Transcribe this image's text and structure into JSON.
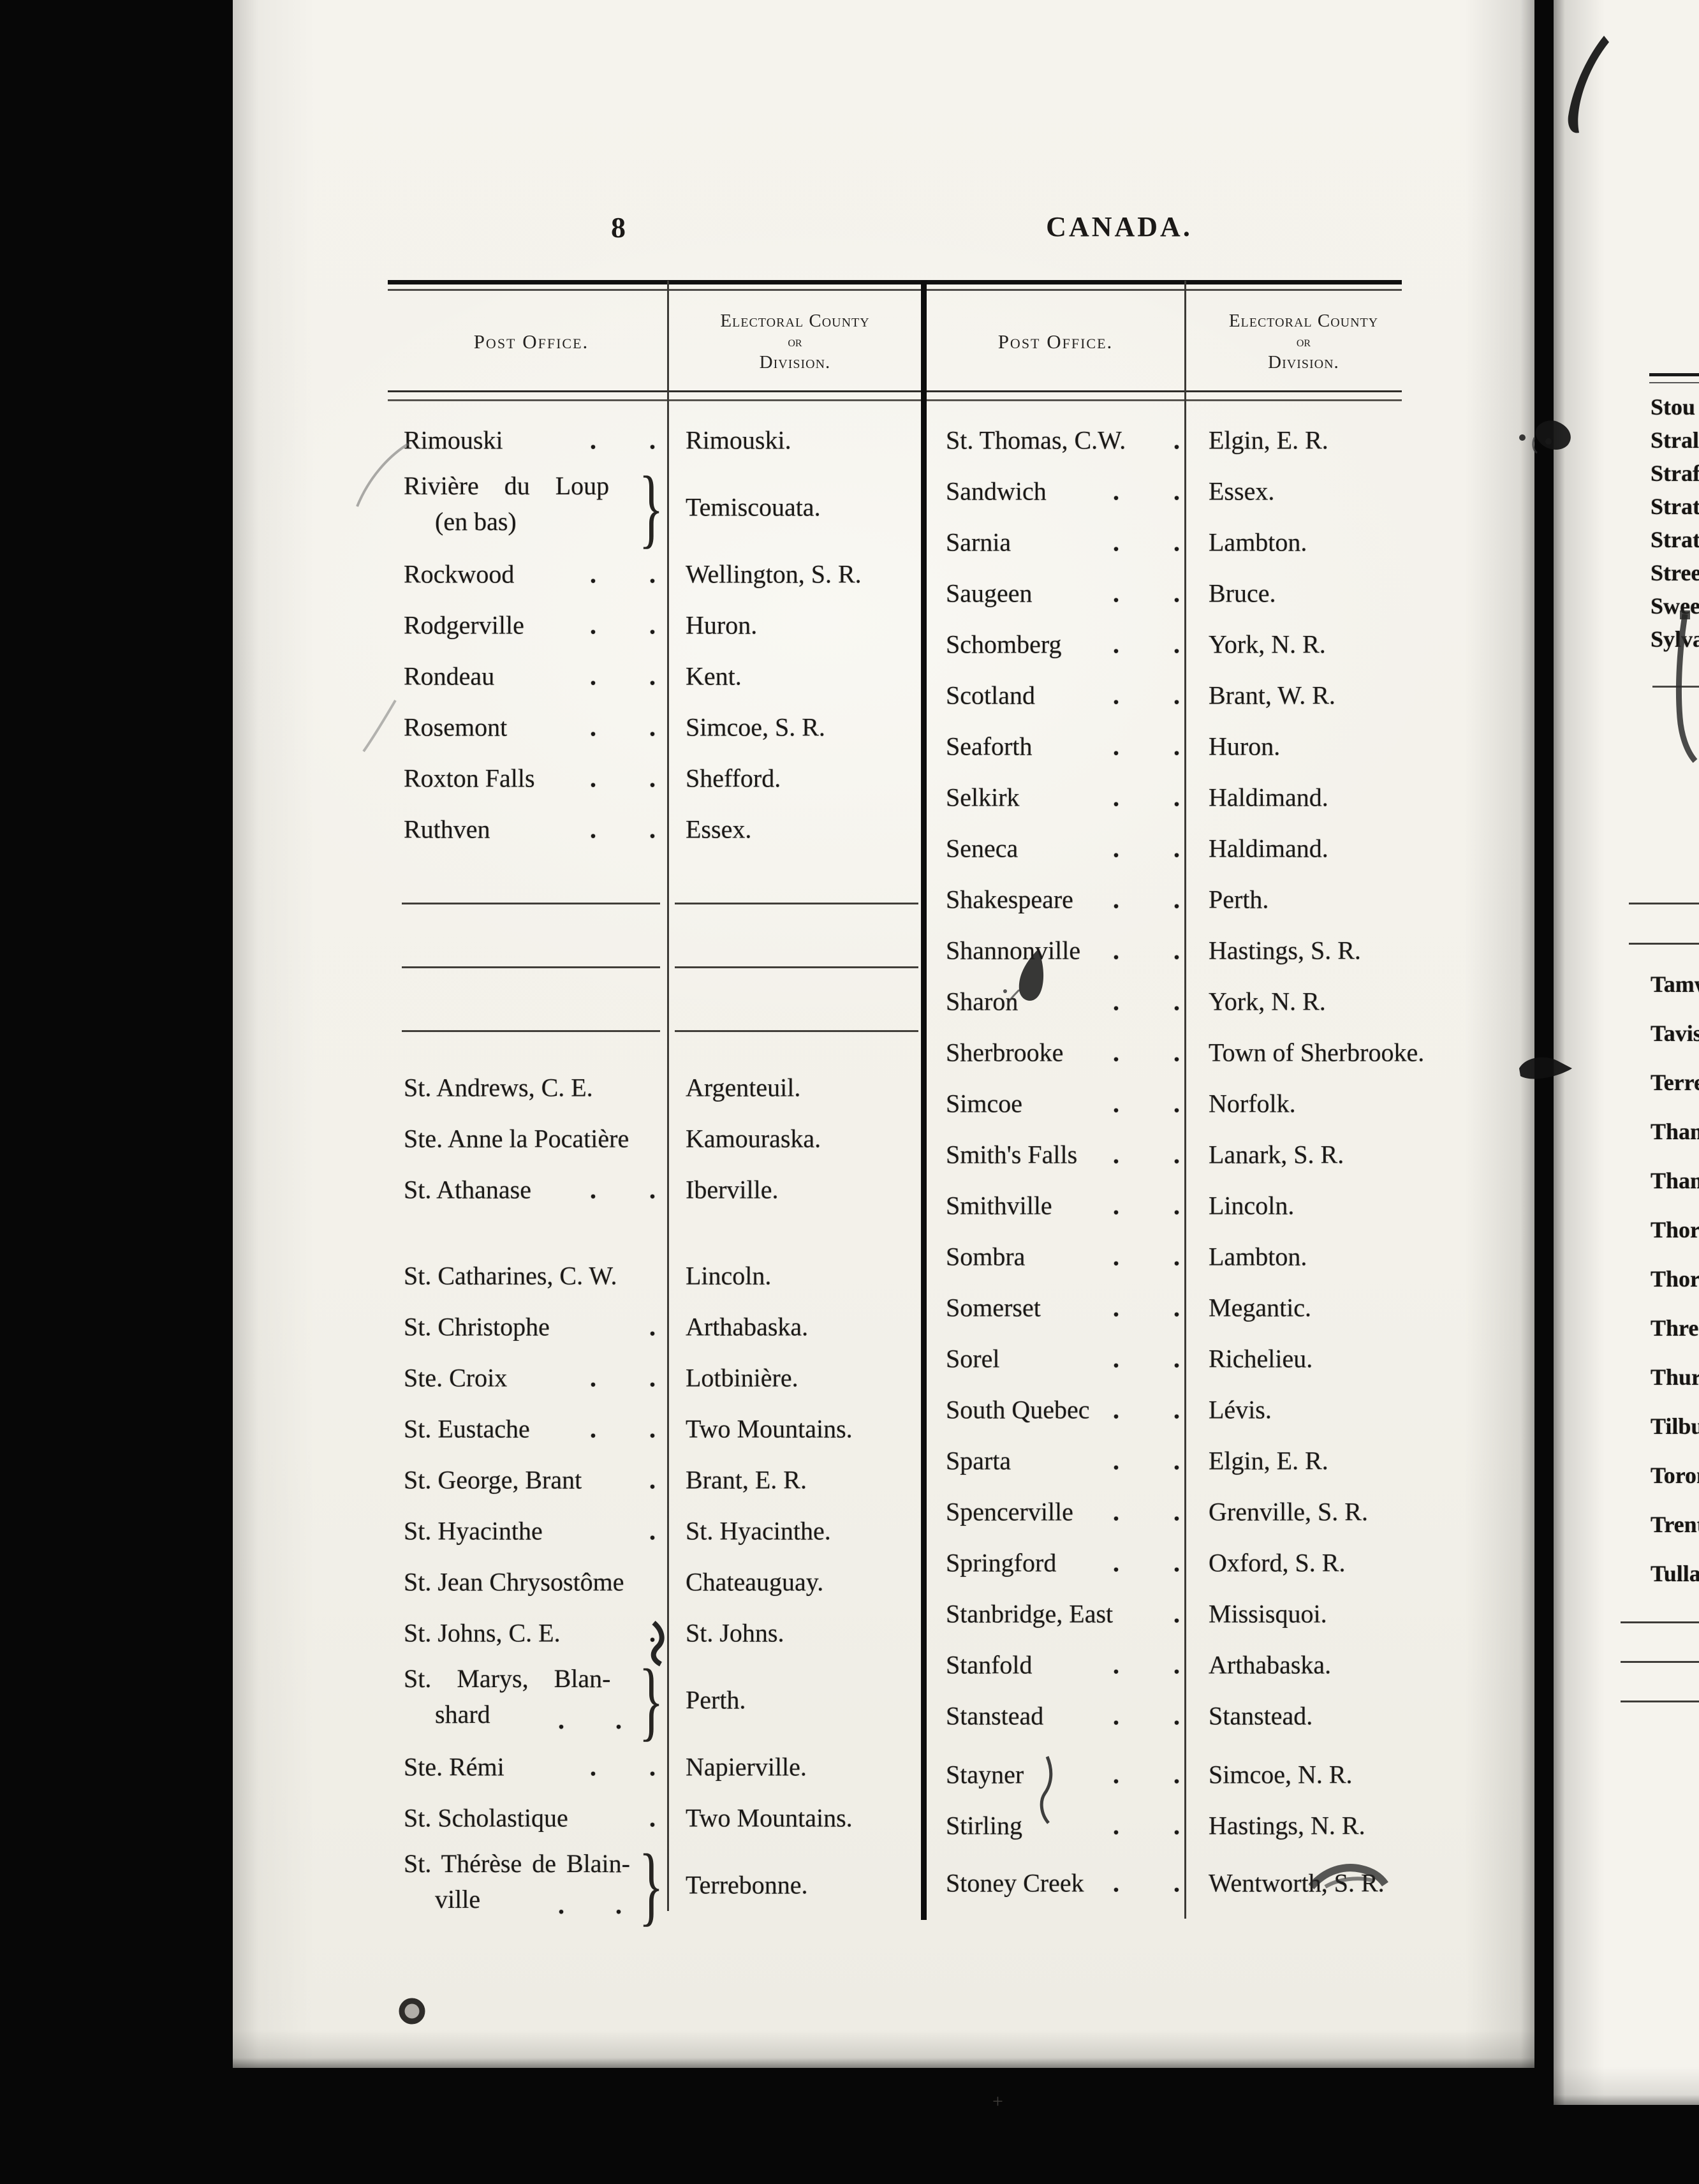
{
  "page": {
    "number": "8",
    "title": "CANADA."
  },
  "glyphs": {
    "leader_dot": ".",
    "brace": "}"
  },
  "table": {
    "header": {
      "post_office": "Post Office.",
      "electoral_1": "Electoral County",
      "electoral_2": "or",
      "electoral_3": "Division."
    },
    "left_rows": [
      {
        "po": "Rimouski",
        "dots": 2,
        "county": "Rimouski."
      },
      {
        "po": "Rivière du Loup",
        "po2": "(en bas)",
        "brace": true,
        "dots": 0,
        "county": "Temiscouata."
      },
      {
        "po": "Rockwood",
        "dots": 2,
        "county": "Wellington, S. R."
      },
      {
        "po": "Rodgerville",
        "dots": 2,
        "county": "Huron."
      },
      {
        "po": "Rondeau",
        "dots": 2,
        "county": "Kent."
      },
      {
        "po": "Rosemont",
        "dots": 2,
        "county": "Simcoe, S. R."
      },
      {
        "po": "Roxton Falls",
        "dots": 2,
        "county": "Shefford."
      },
      {
        "po": "Ruthven",
        "dots": 2,
        "county": "Essex."
      },
      {
        "type": "separator"
      },
      {
        "type": "separator"
      },
      {
        "type": "separator"
      },
      {
        "po": "St. Andrews, C. E.",
        "dots": 0,
        "county": "Argenteuil."
      },
      {
        "po": "Ste. Anne la Pocatière",
        "dots": 0,
        "county": "Kamouraska."
      },
      {
        "po": "St. Athanase",
        "dots": 2,
        "county": "Iberville."
      },
      {
        "po": "St. Catharines, C. W.",
        "dots": 0,
        "county": "Lincoln."
      },
      {
        "po": "St. Christophe",
        "dots": 1,
        "county": "Arthabaska."
      },
      {
        "po": "Ste. Croix",
        "dots": 2,
        "county": "Lotbinière."
      },
      {
        "po": "St. Eustache",
        "dots": 2,
        "county": "Two Mountains."
      },
      {
        "po": "St. George, Brant",
        "dots": 1,
        "county": "Brant, E. R."
      },
      {
        "po": "St. Hyacinthe",
        "dots": 1,
        "county": "St. Hyacinthe."
      },
      {
        "po": "St. Jean Chrysostôme",
        "dots": 0,
        "county": "Chateauguay."
      },
      {
        "po": "St. Johns, C. E.",
        "dots": 1,
        "county": "St. Johns."
      },
      {
        "po": "St. Marys, Blan-",
        "po2": "shard",
        "brace": true,
        "dots": 2,
        "dots_line": 2,
        "county": "Perth."
      },
      {
        "po": "Ste. Rémi",
        "dots": 2,
        "county": "Napierville."
      },
      {
        "po": "St. Scholastique",
        "dots": 1,
        "county": "Two Mountains."
      },
      {
        "po": "St. Thérèse de Blain-",
        "po2": "ville",
        "brace": true,
        "dots": 2,
        "dots_line": 2,
        "county": "Terrebonne."
      }
    ],
    "right_rows": [
      {
        "po": "St. Thomas, C.W.",
        "dots": 1,
        "county": "Elgin, E. R."
      },
      {
        "po": "Sandwich",
        "dots": 2,
        "county": "Essex."
      },
      {
        "po": "Sarnia",
        "dots": 2,
        "county": "Lambton."
      },
      {
        "po": "Saugeen",
        "dots": 2,
        "county": "Bruce."
      },
      {
        "po": "Schomberg",
        "dots": 2,
        "county": "York, N. R."
      },
      {
        "po": "Scotland",
        "dots": 2,
        "county": "Brant, W. R."
      },
      {
        "po": "Seaforth",
        "dots": 2,
        "county": "Huron."
      },
      {
        "po": "Selkirk",
        "dots": 2,
        "county": "Haldimand."
      },
      {
        "po": "Seneca",
        "dots": 2,
        "county": "Haldimand."
      },
      {
        "po": "Shakespeare",
        "dots": 2,
        "county": "Perth."
      },
      {
        "po": "Shannonville",
        "dots": 2,
        "county": "Hastings, S. R."
      },
      {
        "po": "Sharon",
        "dots": 2,
        "county": "York, N. R."
      },
      {
        "po": "Sherbrooke",
        "dots": 2,
        "county": "Town of Sherbrooke."
      },
      {
        "po": "Simcoe",
        "dots": 2,
        "county": "Norfolk."
      },
      {
        "po": "Smith's Falls",
        "dots": 2,
        "county": "Lanark, S. R."
      },
      {
        "po": "Smithville",
        "dots": 2,
        "county": "Lincoln."
      },
      {
        "po": "Sombra",
        "dots": 2,
        "county": "Lambton."
      },
      {
        "po": "Somerset",
        "dots": 2,
        "county": "Megantic."
      },
      {
        "po": "Sorel",
        "dots": 2,
        "county": "Richelieu."
      },
      {
        "po": "South Quebec",
        "dots": 2,
        "county": "Lévis."
      },
      {
        "po": "Sparta",
        "dots": 2,
        "county": "Elgin, E. R."
      },
      {
        "po": "Spencerville",
        "dots": 2,
        "county": "Grenville, S. R."
      },
      {
        "po": "Springford",
        "dots": 2,
        "county": "Oxford, S. R."
      },
      {
        "po": "Stanbridge, East",
        "dots": 1,
        "county": "Missisquoi."
      },
      {
        "po": "Stanfold",
        "dots": 2,
        "county": "Arthabaska."
      },
      {
        "po": "Stanstead",
        "dots": 2,
        "county": "Stanstead."
      },
      {
        "po": "Stayner",
        "dots": 2,
        "county": "Simcoe, N. R."
      },
      {
        "po": "Stirling",
        "dots": 2,
        "county": "Hastings, N. R."
      },
      {
        "po": "Stoney Creek",
        "dots": 2,
        "county": "Wentworth, S. R."
      }
    ]
  },
  "fragment": {
    "s_entries": [
      "Stou",
      "Stral",
      "Straf",
      "Strat",
      "Strath",
      "Stree",
      "Swee",
      "Sylva"
    ],
    "t_entries": [
      "Tamw",
      "Tavist",
      "Terreb",
      "Thame",
      "Thame",
      "Thornh",
      "Thorold",
      "Three",
      "Thurso",
      "Tilbury",
      "Toronto",
      "Trenton",
      "Tullamo"
    ]
  }
}
